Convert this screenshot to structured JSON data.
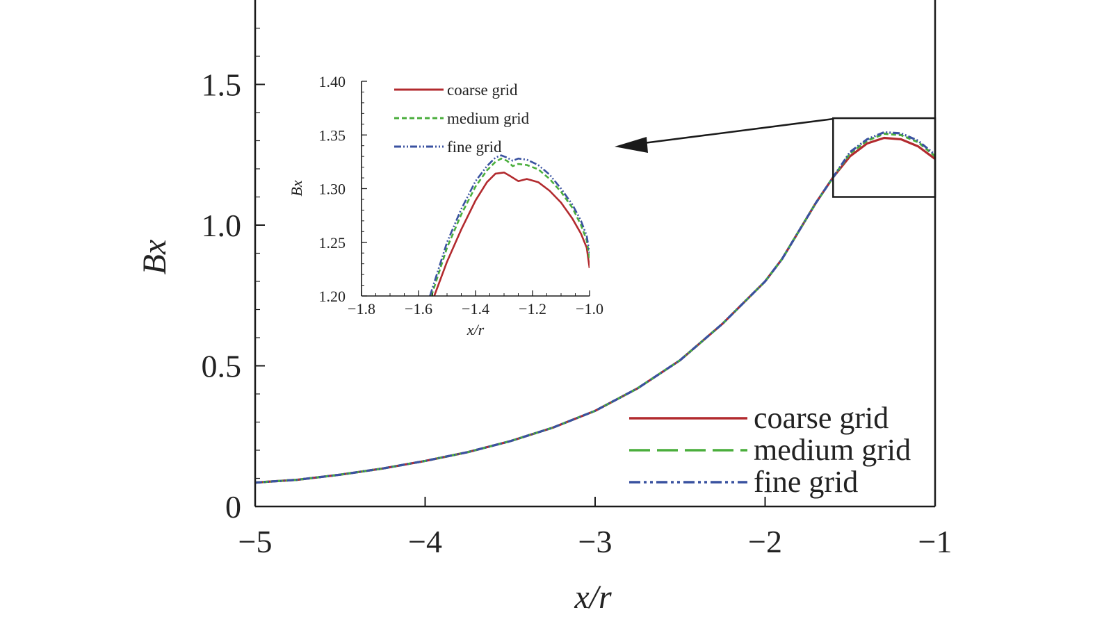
{
  "colors": {
    "coarse": "#b22a2e",
    "medium": "#4aae3c",
    "fine": "#3a52a0",
    "axis": "#1a1a1a",
    "background": "#ffffff"
  },
  "chart_data": [
    {
      "id": "main",
      "type": "line",
      "title": "",
      "xlabel": "x/r",
      "ylabel": "Bx",
      "xlim": [
        -5,
        -1
      ],
      "ylim": [
        0,
        1.8
      ],
      "xticks": [
        -5,
        -4,
        -3,
        -2,
        -1
      ],
      "xtick_labels": [
        "−5",
        "−4",
        "−3",
        "−2",
        "−1"
      ],
      "yticks": [
        0,
        0.5,
        1.0,
        1.5
      ],
      "ytick_labels": [
        "0",
        "0.5",
        "1.0",
        "1.5"
      ],
      "grid": false,
      "legend": "bottom-right",
      "x": [
        -5.0,
        -4.75,
        -4.5,
        -4.25,
        -4.0,
        -3.75,
        -3.5,
        -3.25,
        -3.0,
        -2.75,
        -2.5,
        -2.25,
        -2.0,
        -1.9,
        -1.8,
        -1.7,
        -1.6,
        -1.5,
        -1.4,
        -1.3,
        -1.2,
        -1.1,
        -1.0
      ],
      "series": [
        {
          "name": "coarse grid",
          "style": "solid",
          "values": [
            0.085,
            0.095,
            0.113,
            0.135,
            0.162,
            0.193,
            0.232,
            0.28,
            0.34,
            0.42,
            0.52,
            0.65,
            0.8,
            0.88,
            0.98,
            1.08,
            1.17,
            1.245,
            1.29,
            1.31,
            1.305,
            1.28,
            1.235
          ]
        },
        {
          "name": "medium grid",
          "style": "dashed",
          "values": [
            0.085,
            0.095,
            0.113,
            0.135,
            0.162,
            0.193,
            0.232,
            0.28,
            0.34,
            0.42,
            0.52,
            0.65,
            0.8,
            0.88,
            0.98,
            1.08,
            1.17,
            1.255,
            1.3,
            1.325,
            1.32,
            1.295,
            1.245
          ]
        },
        {
          "name": "fine grid",
          "style": "dashdotdot",
          "values": [
            0.085,
            0.095,
            0.113,
            0.135,
            0.162,
            0.193,
            0.232,
            0.28,
            0.34,
            0.42,
            0.52,
            0.65,
            0.8,
            0.88,
            0.98,
            1.08,
            1.17,
            1.26,
            1.305,
            1.33,
            1.326,
            1.3,
            1.25
          ]
        }
      ],
      "zoom_box": {
        "xlim": [
          -1.6,
          -1.0
        ],
        "ylim": [
          1.1,
          1.38
        ]
      }
    },
    {
      "id": "inset",
      "type": "line",
      "title": "",
      "xlabel": "x/r",
      "ylabel": "Bx",
      "xlim": [
        -1.8,
        -1.0
      ],
      "ylim": [
        1.2,
        1.4
      ],
      "xticks": [
        -1.8,
        -1.6,
        -1.4,
        -1.2,
        -1.0
      ],
      "xtick_labels": [
        "−1.8",
        "−1.6",
        "−1.4",
        "−1.2",
        "−1.0"
      ],
      "yticks": [
        1.2,
        1.25,
        1.3,
        1.35,
        1.4
      ],
      "ytick_labels": [
        "1.20",
        "1.25",
        "1.30",
        "1.35",
        "1.40"
      ],
      "grid": false,
      "legend": "top-left",
      "series": [
        {
          "name": "coarse grid",
          "style": "solid",
          "x": [
            -1.545,
            -1.5,
            -1.45,
            -1.4,
            -1.36,
            -1.33,
            -1.3,
            -1.28,
            -1.25,
            -1.22,
            -1.18,
            -1.14,
            -1.1,
            -1.06,
            -1.03,
            -1.01,
            -1.0
          ],
          "values": [
            1.2,
            1.232,
            1.262,
            1.289,
            1.306,
            1.314,
            1.315,
            1.312,
            1.307,
            1.309,
            1.306,
            1.298,
            1.287,
            1.272,
            1.258,
            1.245,
            1.226
          ]
        },
        {
          "name": "medium grid",
          "style": "dashed",
          "x": [
            -1.555,
            -1.5,
            -1.45,
            -1.4,
            -1.36,
            -1.33,
            -1.31,
            -1.29,
            -1.27,
            -1.25,
            -1.22,
            -1.18,
            -1.14,
            -1.1,
            -1.06,
            -1.03,
            -1.01,
            -1.0
          ],
          "values": [
            1.2,
            1.245,
            1.276,
            1.302,
            1.317,
            1.325,
            1.328,
            1.326,
            1.321,
            1.323,
            1.322,
            1.318,
            1.309,
            1.297,
            1.282,
            1.266,
            1.252,
            1.235
          ]
        },
        {
          "name": "fine grid",
          "style": "dashdotdot",
          "x": [
            -1.56,
            -1.5,
            -1.45,
            -1.4,
            -1.36,
            -1.33,
            -1.31,
            -1.29,
            -1.27,
            -1.25,
            -1.22,
            -1.18,
            -1.14,
            -1.1,
            -1.06,
            -1.03,
            -1.01,
            -1.0
          ],
          "values": [
            1.2,
            1.25,
            1.281,
            1.307,
            1.321,
            1.329,
            1.331,
            1.329,
            1.326,
            1.328,
            1.327,
            1.322,
            1.313,
            1.3,
            1.285,
            1.27,
            1.256,
            1.24
          ]
        }
      ]
    }
  ]
}
